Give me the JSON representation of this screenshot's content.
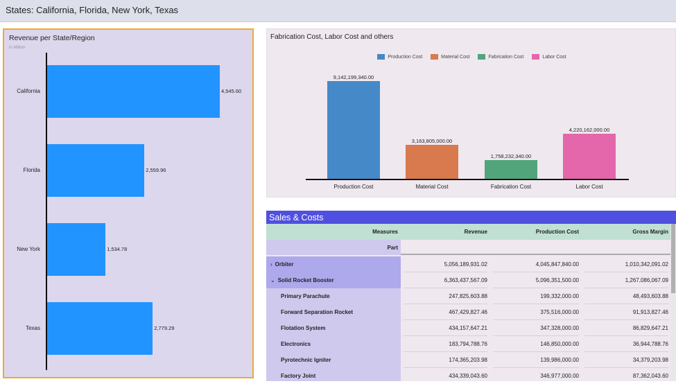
{
  "header": {
    "title": "States: California, Florida, New York, Texas"
  },
  "chart_data": [
    {
      "type": "bar",
      "orientation": "horizontal",
      "title": "Revenue per State/Region",
      "subtitle": "in Million",
      "categories": [
        "California",
        "Florida",
        "New York",
        "Texas"
      ],
      "values": [
        4545.6,
        2559.96,
        1534.78,
        2779.29
      ],
      "labels": [
        "4,545.60",
        "2,559.96",
        "1,534.78",
        "2,779.29"
      ],
      "color": "#2194ff"
    },
    {
      "type": "bar",
      "title": "Fabrication Cost, Labor Cost and others",
      "categories": [
        "Production Cost",
        "Material Cost",
        "Fabrication Cost",
        "Labor Cost"
      ],
      "values": [
        9142199340.0,
        3163805000.0,
        1758232340.0,
        4220162000.0
      ],
      "labels": [
        "9,142,199,340.00",
        "3,163,805,000.00",
        "1,758,232,340.00",
        "4,220,162,000.00"
      ],
      "legend": [
        "Production Cost",
        "Material Cost",
        "Fabrication Cost",
        "Labor Cost"
      ],
      "legend_position": "top",
      "colors": [
        "#4689c8",
        "#d97a4e",
        "#52a57b",
        "#e367aa"
      ]
    }
  ],
  "table": {
    "title": "Sales & Costs",
    "measures_label": "Measures",
    "part_label": "Part",
    "columns": [
      "Revenue",
      "Production Cost",
      "Gross Margin"
    ],
    "rows": [
      {
        "label": "Orbiter",
        "expander": "chevron-right",
        "level": 0,
        "values": [
          "5,056,189,931.02",
          "4,045,847,840.00",
          "1,010,342,091.02"
        ]
      },
      {
        "label": "Solid Rocket Booster",
        "expander": "chevron-down",
        "level": 0,
        "values": [
          "6,363,437,567.09",
          "5,096,351,500.00",
          "1,267,086,067.09"
        ]
      },
      {
        "label": "Primary Parachute",
        "level": 1,
        "values": [
          "247,825,603.88",
          "199,332,000.00",
          "48,493,603.88"
        ]
      },
      {
        "label": "Forward Separation Rocket",
        "level": 1,
        "values": [
          "467,429,827.46",
          "375,516,000.00",
          "91,913,827.46"
        ]
      },
      {
        "label": "Flotation System",
        "level": 1,
        "values": [
          "434,157,647.21",
          "347,328,000.00",
          "86,829,647.21"
        ]
      },
      {
        "label": "Electronics",
        "level": 1,
        "values": [
          "183,794,788.76",
          "146,850,000.00",
          "36,944,788.76"
        ]
      },
      {
        "label": "Pyrotechnic Igniter",
        "level": 1,
        "values": [
          "174,365,203.98",
          "139,986,000.00",
          "34,379,203.98"
        ]
      },
      {
        "label": "Factory Joint",
        "level": 1,
        "values": [
          "434,339,043.60",
          "346,977,000.00",
          "87,362,043.60"
        ]
      }
    ]
  }
}
